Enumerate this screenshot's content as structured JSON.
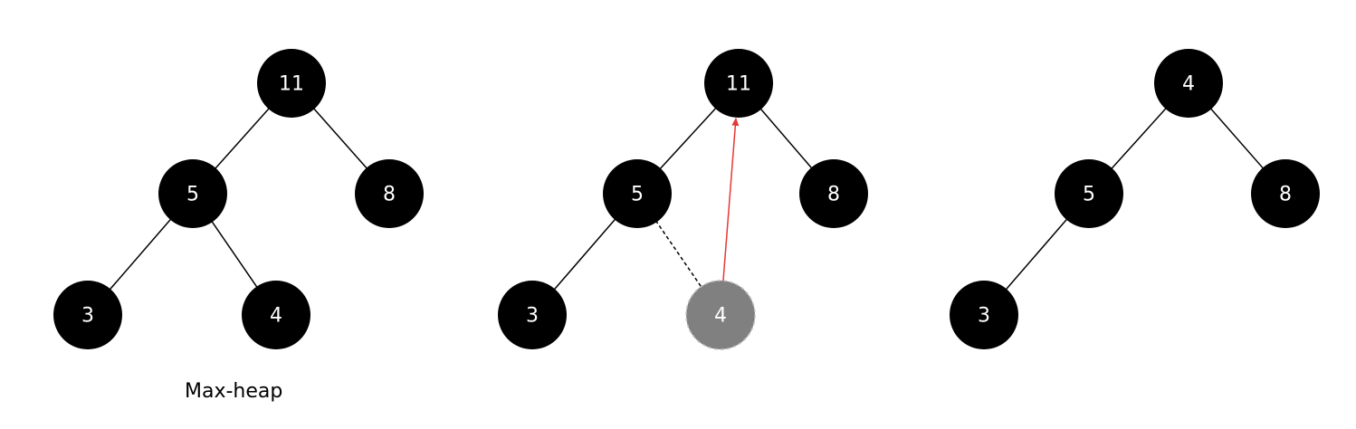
{
  "caption": "Max-heap",
  "colors": {
    "node_fill": "#000000",
    "node_text": "#ffffff",
    "edge": "#000000",
    "highlight_node_fill": "#808080",
    "highlight_node_stroke": "#bdbdbd",
    "arrow": "#e53935"
  },
  "trees": [
    {
      "id": "tree-1",
      "nodes": [
        {
          "id": "root",
          "label": "11"
        },
        {
          "id": "left",
          "label": "5"
        },
        {
          "id": "right",
          "label": "8"
        },
        {
          "id": "left-left",
          "label": "3"
        },
        {
          "id": "left-right",
          "label": "4"
        }
      ],
      "edges": [
        {
          "from": "root",
          "to": "left",
          "style": "solid"
        },
        {
          "from": "root",
          "to": "right",
          "style": "solid"
        },
        {
          "from": "left",
          "to": "left-left",
          "style": "solid"
        },
        {
          "from": "left",
          "to": "left-right",
          "style": "solid"
        }
      ]
    },
    {
      "id": "tree-2",
      "nodes": [
        {
          "id": "root",
          "label": "11"
        },
        {
          "id": "left",
          "label": "5"
        },
        {
          "id": "right",
          "label": "8"
        },
        {
          "id": "left-left",
          "label": "3"
        },
        {
          "id": "left-right",
          "label": "4",
          "highlight": true
        }
      ],
      "edges": [
        {
          "from": "root",
          "to": "left",
          "style": "solid"
        },
        {
          "from": "root",
          "to": "right",
          "style": "solid"
        },
        {
          "from": "left",
          "to": "left-left",
          "style": "solid"
        },
        {
          "from": "left",
          "to": "left-right",
          "style": "dashed"
        }
      ],
      "arrow": {
        "from": "left-right",
        "to": "root"
      }
    },
    {
      "id": "tree-3",
      "nodes": [
        {
          "id": "root",
          "label": "4"
        },
        {
          "id": "left",
          "label": "5"
        },
        {
          "id": "right",
          "label": "8"
        },
        {
          "id": "left-left",
          "label": "3"
        }
      ],
      "edges": [
        {
          "from": "root",
          "to": "left",
          "style": "solid"
        },
        {
          "from": "root",
          "to": "right",
          "style": "solid"
        },
        {
          "from": "left",
          "to": "left-left",
          "style": "solid"
        }
      ]
    }
  ]
}
